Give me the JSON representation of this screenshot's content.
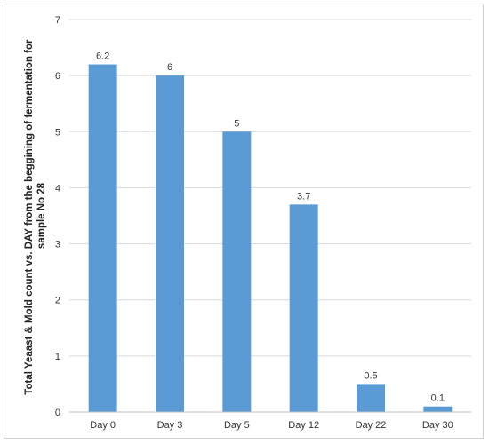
{
  "chart_data": {
    "type": "bar",
    "categories": [
      "Day 0",
      "Day 3",
      "Day 5",
      "Day 12",
      "Day 22",
      "Day 30"
    ],
    "values": [
      6.2,
      6,
      5,
      3.7,
      0.5,
      0.1
    ],
    "data_labels": [
      "6.2",
      "6",
      "5",
      "3.7",
      "0.5",
      "0.1"
    ],
    "title": "",
    "xlabel": "",
    "ylabel_lines": [
      "Total Yeaast & Mold count vs. DAY from the beggining of fermentation  for",
      "sample No 28"
    ],
    "ylim": [
      0,
      7
    ],
    "yticks": [
      0,
      1,
      2,
      3,
      4,
      5,
      6,
      7
    ],
    "grid": true,
    "legend": "none",
    "bar_color": "#5b9bd5",
    "grid_color": "#d9d9d9"
  }
}
